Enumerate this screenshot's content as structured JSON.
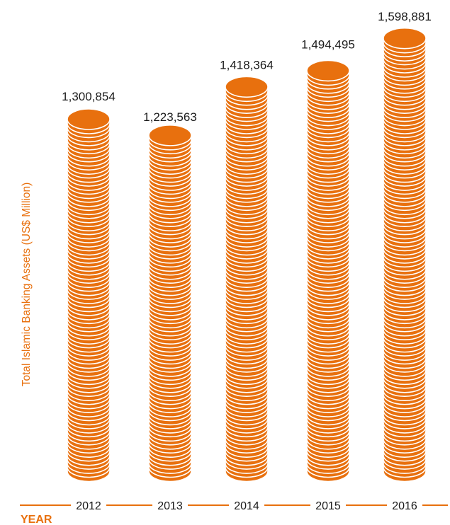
{
  "chart_data": {
    "type": "bar",
    "style": "stacked-coins",
    "categories": [
      "2012",
      "2013",
      "2014",
      "2015",
      "2016"
    ],
    "values": [
      1300854,
      1223563,
      1418364,
      1494495,
      1598881
    ],
    "value_labels": [
      "1,300,854",
      "1,223,563",
      "1,418,364",
      "1,494,495",
      "1,598,881"
    ],
    "ylabel": "Total Islamic Banking Assets (US$ Million)",
    "xlabel": "YEAR",
    "grid": false,
    "legend": "none"
  },
  "colors": {
    "accent": "#e8700e",
    "coin_edge": "#ffffff",
    "text": "#1a1a1a"
  }
}
